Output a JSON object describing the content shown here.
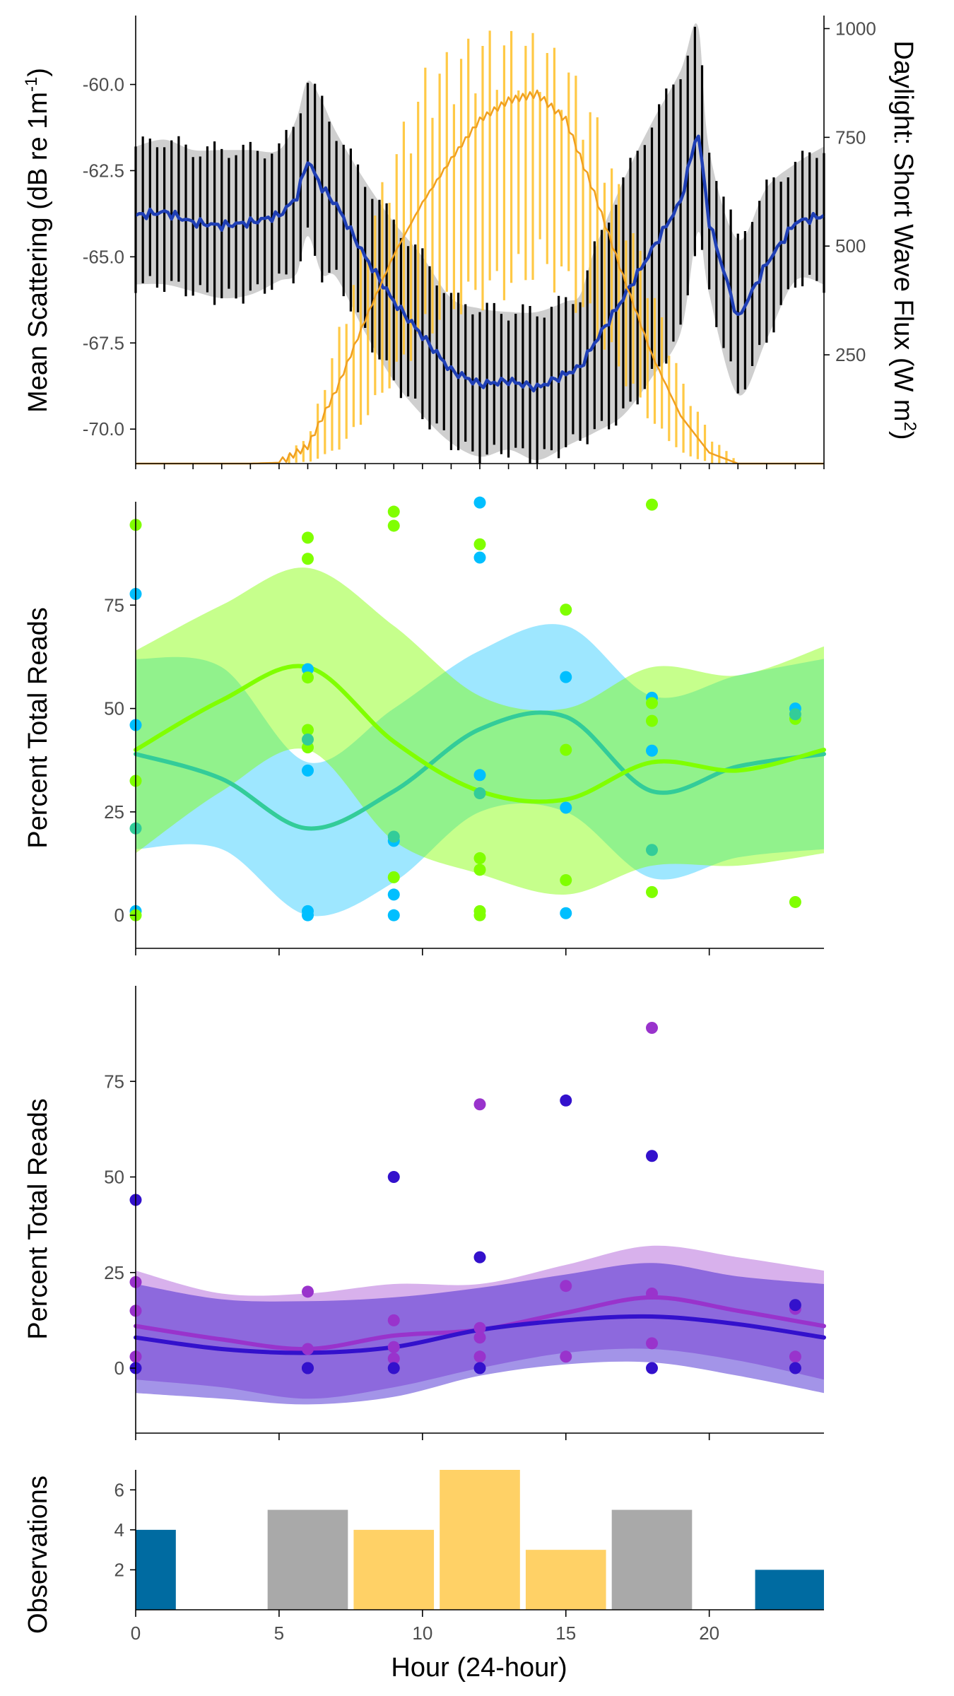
{
  "chart_data": [
    {
      "type": "line",
      "panel": "scattering",
      "ylabel_left": "Mean Scattering  (dB re 1m",
      "ylabel_left_sup": "-1",
      "ylabel_left_end": ")",
      "ylabel_right": "Daylight: Short Wave Flux  (W m",
      "ylabel_right_sup": "2",
      "ylabel_right_end": ")",
      "ylim_left": [
        -71.0,
        -58.0
      ],
      "yticks_left": [
        -70.0,
        -67.5,
        -65.0,
        -62.5,
        -60.0
      ],
      "yticks_left_labels": [
        "-70.0",
        "-67.5",
        "-65.0",
        "-62.5",
        "-60.0"
      ],
      "ylim_right": [
        0,
        1030
      ],
      "yticks_right": [
        250,
        500,
        750,
        1000
      ],
      "yticks_right_labels": [
        "250",
        "500",
        "750",
        "1000"
      ],
      "xlim": [
        0,
        24
      ],
      "grid": false,
      "colors": {
        "scatter_line": "#1f3fb5",
        "scatter_band": "#cfcfcf",
        "scatter_bars": "#000000",
        "flux_line": "#f0a020",
        "flux_bars": "#ffc433"
      },
      "series": [
        {
          "name": "",
          "x": [
            0,
            1,
            2,
            3,
            4,
            5,
            5.6,
            6,
            6.5,
            7,
            8,
            9,
            10,
            11,
            12,
            13,
            14,
            15,
            15.5,
            16,
            17,
            18,
            19,
            19.6,
            20,
            21,
            22,
            23,
            24
          ],
          "mean": [
            -63.8,
            -63.7,
            -64.0,
            -64.1,
            -64.0,
            -63.8,
            -63.3,
            -62.2,
            -63.0,
            -63.5,
            -65.0,
            -66.3,
            -67.3,
            -68.3,
            -68.7,
            -68.6,
            -68.8,
            -68.4,
            -68.2,
            -67.5,
            -66.2,
            -64.8,
            -63.4,
            -61.3,
            -64.0,
            -66.8,
            -65.2,
            -64.0,
            -63.8
          ],
          "upper": [
            -61.8,
            -61.6,
            -61.9,
            -61.9,
            -61.9,
            -61.9,
            -61.0,
            -59.9,
            -60.5,
            -61.4,
            -62.8,
            -64.0,
            -65.0,
            -66.2,
            -66.5,
            -66.6,
            -66.6,
            -66.3,
            -66.1,
            -64.8,
            -62.8,
            -61.1,
            -59.6,
            -58.3,
            -61.9,
            -64.5,
            -63.0,
            -62.3,
            -61.8
          ],
          "lower": [
            -65.8,
            -65.8,
            -66.0,
            -66.2,
            -66.1,
            -65.7,
            -65.5,
            -64.4,
            -65.5,
            -65.6,
            -67.2,
            -68.6,
            -69.6,
            -70.4,
            -70.8,
            -70.6,
            -70.9,
            -70.5,
            -70.3,
            -70.1,
            -69.6,
            -68.5,
            -67.2,
            -64.3,
            -66.1,
            -69.0,
            -67.4,
            -65.7,
            -65.8
          ]
        },
        {
          "name": "",
          "x": [
            0,
            4,
            5,
            6,
            7,
            8,
            9,
            10,
            11,
            12,
            13,
            14,
            15,
            16,
            17,
            18,
            19,
            20,
            21,
            24
          ],
          "flux": [
            0,
            0,
            2,
            40,
            170,
            330,
            480,
            600,
            700,
            790,
            835,
            850,
            790,
            620,
            430,
            250,
            110,
            25,
            0,
            0
          ],
          "flux_max": [
            0,
            0,
            5,
            80,
            320,
            560,
            760,
            930,
            980,
            1020,
            1020,
            1015,
            950,
            820,
            610,
            400,
            190,
            60,
            0,
            0
          ],
          "flux_min": [
            0,
            0,
            0,
            5,
            40,
            130,
            240,
            350,
            410,
            440,
            470,
            520,
            460,
            340,
            220,
            100,
            25,
            0,
            0,
            0
          ]
        }
      ]
    },
    {
      "type": "scatter",
      "panel": "reads-1",
      "ylabel": "Percent Total Reads",
      "ylim": [
        -8,
        100
      ],
      "yticks": [
        0,
        25,
        50,
        75
      ],
      "yticks_labels": [
        "0",
        "25",
        "50",
        "75"
      ],
      "xlim": [
        0,
        24
      ],
      "grid": false,
      "series": [
        {
          "name": "",
          "color": "#00bfff",
          "x": [
            0,
            3,
            6,
            9,
            12,
            15,
            18,
            21,
            24
          ],
          "y": [
            39,
            33,
            21,
            30,
            45,
            48,
            30,
            36,
            39
          ],
          "upper": [
            62,
            60,
            37,
            50,
            64,
            70,
            53,
            58,
            62
          ],
          "lower": [
            16,
            16,
            0,
            8,
            25,
            25,
            9,
            14,
            16
          ],
          "points_x": [
            0,
            0,
            0,
            6,
            6,
            6,
            6,
            9,
            9,
            9,
            12,
            12,
            12,
            15,
            15,
            15,
            18,
            18,
            23
          ],
          "points_y": [
            77.7,
            46,
            1,
            59.5,
            35,
            1,
            0,
            18,
            5,
            0,
            99.8,
            86.5,
            33.9,
            57.6,
            26,
            0.5,
            52.6,
            39.8,
            50
          ]
        },
        {
          "name": "",
          "color": "#80ff00",
          "x": [
            0,
            3,
            6,
            9,
            12,
            15,
            18,
            21,
            24
          ],
          "y": [
            40,
            52,
            60,
            42,
            30,
            28,
            37,
            35,
            40
          ],
          "upper": [
            64,
            75,
            84,
            70,
            53,
            50,
            60,
            58,
            65
          ],
          "lower": [
            15,
            30,
            40,
            18,
            10,
            5,
            12,
            12,
            15
          ],
          "points_x": [
            0,
            0,
            0,
            6,
            6,
            6,
            6,
            6,
            9,
            9,
            9,
            12,
            12,
            12,
            12,
            12,
            15,
            15,
            15,
            18,
            18,
            18,
            18,
            23,
            23
          ],
          "points_y": [
            94.4,
            32.5,
            0,
            91.3,
            86.2,
            57.5,
            44.8,
            40.6,
            97.6,
            94.2,
            9.2,
            89.7,
            13.8,
            11,
            1,
            0,
            73.9,
            40,
            8.5,
            99.3,
            51.3,
            47,
            5.6,
            47.5,
            3.2
          ]
        }
      ],
      "band_overlap_color": "#90ee90",
      "mixed_points": [
        {
          "x": 0,
          "y": 21
        },
        {
          "x": 6,
          "y": 42.5
        },
        {
          "x": 9,
          "y": 19
        },
        {
          "x": 12,
          "y": 29.5
        },
        {
          "x": 18,
          "y": 15.8
        },
        {
          "x": 23,
          "y": 48.6
        }
      ]
    },
    {
      "type": "scatter",
      "panel": "reads-2",
      "ylabel": "Percent Total Reads",
      "ylim": [
        -17,
        100
      ],
      "yticks": [
        0,
        25,
        50,
        75
      ],
      "yticks_labels": [
        "0",
        "25",
        "50",
        "75"
      ],
      "xlim": [
        0,
        24
      ],
      "grid": false,
      "series": [
        {
          "name": "",
          "color": "#9933cc",
          "x": [
            0,
            3,
            6,
            9,
            12,
            15,
            18,
            21,
            24
          ],
          "y": [
            11,
            7.5,
            5,
            8.5,
            10,
            14.5,
            18.5,
            15,
            11
          ],
          "upper": [
            25.5,
            19.5,
            19.5,
            22,
            22,
            27,
            32,
            29,
            25.5
          ],
          "lower": [
            -3,
            -5,
            -8,
            -5,
            0,
            4,
            5,
            2,
            -3
          ],
          "points_x": [
            0,
            0,
            0,
            6,
            6,
            9,
            9,
            9,
            12,
            12,
            12,
            12,
            15,
            15,
            18,
            18,
            18,
            23,
            23
          ],
          "points_y": [
            22.5,
            15,
            3,
            20,
            5,
            12.5,
            5.5,
            2.5,
            69,
            10.5,
            8,
            3,
            21.5,
            3,
            89,
            19.5,
            6.5,
            15.5,
            3
          ]
        },
        {
          "name": "",
          "color": "#3311cc",
          "x": [
            0,
            3,
            6,
            9,
            12,
            15,
            18,
            21,
            24
          ],
          "y": [
            8,
            5,
            4,
            5.5,
            10,
            12.5,
            13.5,
            11.5,
            8
          ],
          "upper": [
            22,
            18,
            17.5,
            18.5,
            21,
            24.5,
            27.5,
            24,
            22
          ],
          "lower": [
            -6.5,
            -8,
            -9.5,
            -7.5,
            -2,
            1,
            1.5,
            -2,
            -6.5
          ],
          "points_x": [
            0,
            0,
            6,
            6,
            9,
            9,
            12,
            12,
            15,
            18,
            18,
            23,
            23
          ],
          "points_y": [
            44,
            0,
            0,
            0,
            50,
            0,
            29,
            0,
            70,
            55.5,
            0,
            16.5,
            0
          ]
        }
      ]
    },
    {
      "type": "bar",
      "panel": "observations",
      "ylabel": "Observations",
      "xlabel": "Hour (24-hour)",
      "xticks": [
        0,
        5,
        10,
        15,
        20
      ],
      "xticks_labels": [
        "0",
        "5",
        "10",
        "15",
        "20"
      ],
      "ylim": [
        0,
        7
      ],
      "yticks": [
        2,
        4,
        6
      ],
      "yticks_labels": [
        "2",
        "4",
        "6"
      ],
      "grid": false,
      "x": [
        0,
        6,
        9,
        12,
        15,
        18,
        23
      ],
      "values": [
        4,
        5,
        4,
        7,
        3,
        5,
        2
      ],
      "colors": [
        "#006ba1",
        "#a9a9a9",
        "#ffd166",
        "#ffd166",
        "#ffd166",
        "#a9a9a9",
        "#006ba1"
      ]
    }
  ]
}
